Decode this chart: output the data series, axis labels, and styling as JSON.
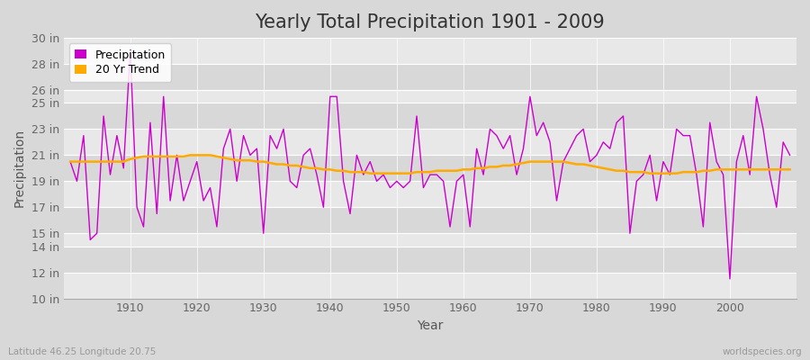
{
  "title": "Yearly Total Precipitation 1901 - 2009",
  "xlabel": "Year",
  "ylabel": "Precipitation",
  "subtitle_left": "Latitude 46.25 Longitude 20.75",
  "subtitle_right": "worldspecies.org",
  "years": [
    1901,
    1902,
    1903,
    1904,
    1905,
    1906,
    1907,
    1908,
    1909,
    1910,
    1911,
    1912,
    1913,
    1914,
    1915,
    1916,
    1917,
    1918,
    1919,
    1920,
    1921,
    1922,
    1923,
    1924,
    1925,
    1926,
    1927,
    1928,
    1929,
    1930,
    1931,
    1932,
    1933,
    1934,
    1935,
    1936,
    1937,
    1938,
    1939,
    1940,
    1941,
    1942,
    1943,
    1944,
    1945,
    1946,
    1947,
    1948,
    1949,
    1950,
    1951,
    1952,
    1953,
    1954,
    1955,
    1956,
    1957,
    1958,
    1959,
    1960,
    1961,
    1962,
    1963,
    1964,
    1965,
    1966,
    1967,
    1968,
    1969,
    1970,
    1971,
    1972,
    1973,
    1974,
    1975,
    1976,
    1977,
    1978,
    1979,
    1980,
    1981,
    1982,
    1983,
    1984,
    1985,
    1986,
    1987,
    1988,
    1989,
    1990,
    1991,
    1992,
    1993,
    1994,
    1995,
    1996,
    1997,
    1998,
    1999,
    2000,
    2001,
    2002,
    2003,
    2004,
    2005,
    2006,
    2007,
    2008,
    2009
  ],
  "precipitation": [
    20.5,
    19.0,
    22.5,
    14.5,
    15.0,
    24.0,
    19.5,
    22.5,
    20.0,
    29.0,
    17.0,
    15.5,
    23.5,
    16.5,
    25.5,
    17.5,
    21.0,
    17.5,
    19.0,
    20.5,
    17.5,
    18.5,
    15.5,
    21.5,
    23.0,
    19.0,
    22.5,
    21.0,
    21.5,
    15.0,
    22.5,
    21.5,
    23.0,
    19.0,
    18.5,
    21.0,
    21.5,
    19.5,
    17.0,
    25.5,
    25.5,
    19.0,
    16.5,
    21.0,
    19.5,
    20.5,
    19.0,
    19.5,
    18.5,
    19.0,
    18.5,
    19.0,
    24.0,
    18.5,
    19.5,
    19.5,
    19.0,
    15.5,
    19.0,
    19.5,
    15.5,
    21.5,
    19.5,
    23.0,
    22.5,
    21.5,
    22.5,
    19.5,
    21.5,
    25.5,
    22.5,
    23.5,
    22.0,
    17.5,
    20.5,
    21.5,
    22.5,
    23.0,
    20.5,
    21.0,
    22.0,
    21.5,
    23.5,
    24.0,
    15.0,
    19.0,
    19.5,
    21.0,
    17.5,
    20.5,
    19.5,
    23.0,
    22.5,
    22.5,
    19.5,
    15.5,
    23.5,
    20.5,
    19.5,
    11.5,
    20.5,
    22.5,
    19.5,
    25.5,
    23.0,
    19.5,
    17.0,
    22.0,
    21.0
  ],
  "trend": [
    20.5,
    20.5,
    20.5,
    20.5,
    20.5,
    20.5,
    20.5,
    20.5,
    20.5,
    20.7,
    20.8,
    20.9,
    20.9,
    20.9,
    20.9,
    20.9,
    20.9,
    20.9,
    21.0,
    21.0,
    21.0,
    21.0,
    20.9,
    20.8,
    20.7,
    20.6,
    20.6,
    20.6,
    20.5,
    20.5,
    20.4,
    20.3,
    20.3,
    20.2,
    20.2,
    20.1,
    20.0,
    20.0,
    19.9,
    19.9,
    19.8,
    19.8,
    19.7,
    19.7,
    19.7,
    19.6,
    19.6,
    19.6,
    19.6,
    19.6,
    19.6,
    19.6,
    19.7,
    19.7,
    19.7,
    19.8,
    19.8,
    19.8,
    19.8,
    19.9,
    19.9,
    20.0,
    20.0,
    20.1,
    20.1,
    20.2,
    20.2,
    20.3,
    20.4,
    20.5,
    20.5,
    20.5,
    20.5,
    20.5,
    20.5,
    20.4,
    20.3,
    20.3,
    20.2,
    20.1,
    20.0,
    19.9,
    19.8,
    19.8,
    19.7,
    19.7,
    19.7,
    19.6,
    19.6,
    19.6,
    19.6,
    19.6,
    19.7,
    19.7,
    19.7,
    19.8,
    19.8,
    19.9,
    19.9,
    19.9,
    19.9,
    19.9,
    19.9,
    19.9,
    19.9,
    19.9,
    19.9,
    19.9,
    19.9
  ],
  "precip_color": "#cc00cc",
  "trend_color": "#ffaa00",
  "fig_bg_color": "#d8d8d8",
  "plot_bg_light": "#e8e8e8",
  "plot_bg_dark": "#d8d8d8",
  "grid_line_color": "#ffffff",
  "ylim": [
    10,
    30
  ],
  "yticks": [
    10,
    12,
    14,
    15,
    17,
    19,
    21,
    23,
    25,
    26,
    28,
    30
  ],
  "ytick_labels": [
    "10 in",
    "12 in",
    "14 in",
    "15 in",
    "17 in",
    "19 in",
    "21 in",
    "23 in",
    "25 in",
    "26 in",
    "28 in",
    "30 in"
  ],
  "xticks": [
    1910,
    1920,
    1930,
    1940,
    1950,
    1960,
    1970,
    1980,
    1990,
    2000
  ],
  "title_fontsize": 15,
  "axis_fontsize": 10,
  "tick_fontsize": 9,
  "legend_fontsize": 9
}
